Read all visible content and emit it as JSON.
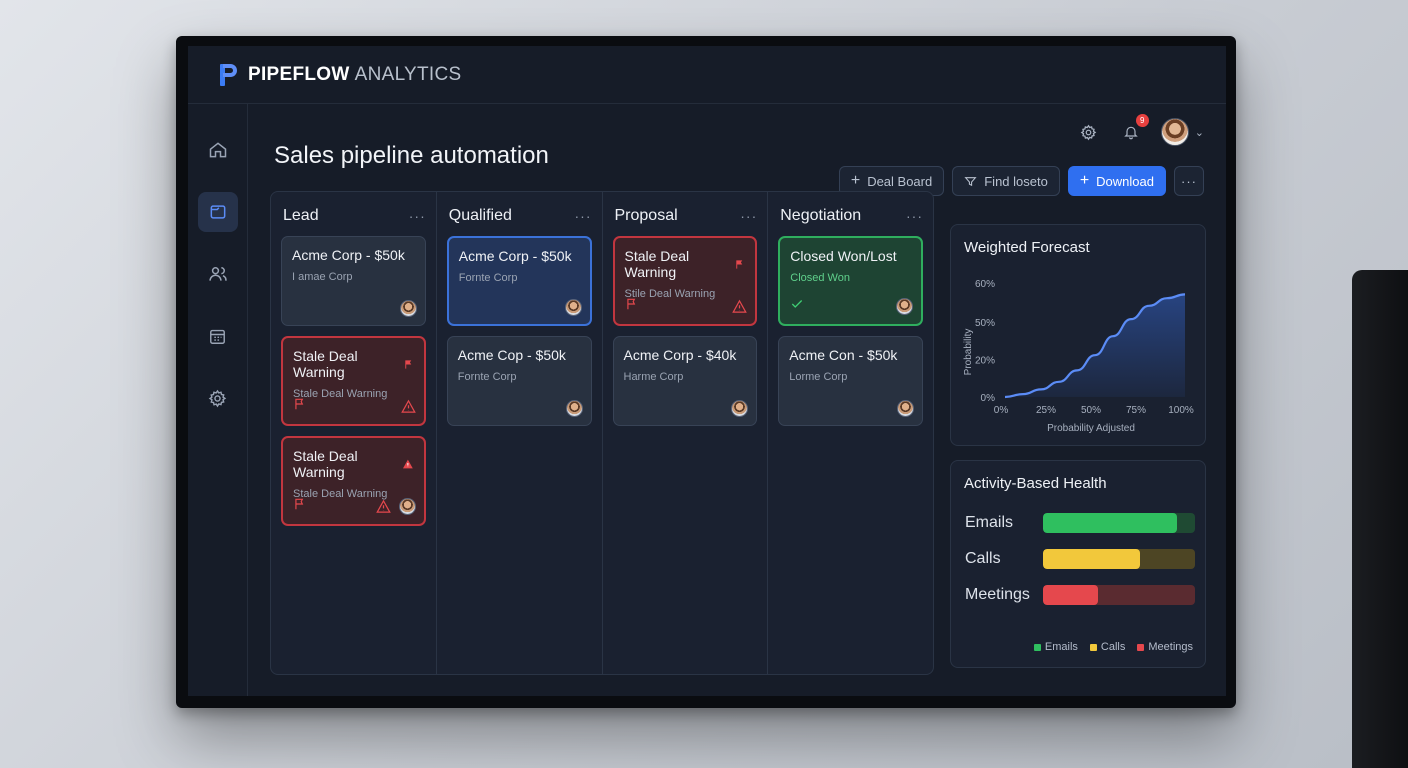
{
  "app": {
    "brand_strong": "PIPEFLOW",
    "brand_light": "ANALYTICS",
    "notification_count": "9"
  },
  "page": {
    "title": "Sales pipeline automation"
  },
  "toolbar": {
    "deal_board_label": "Deal Board",
    "find_label": "Find loseto",
    "download_label": "Download"
  },
  "sidebar": {
    "items": [
      {
        "name": "home-icon",
        "active": false
      },
      {
        "name": "folder-icon",
        "active": true
      },
      {
        "name": "users-icon",
        "active": false
      },
      {
        "name": "calendar-icon",
        "active": false
      },
      {
        "name": "gear-icon",
        "active": false
      }
    ]
  },
  "board": {
    "columns": [
      {
        "title": "Lead",
        "cards": [
          {
            "title": "Acme Corp - $50k",
            "sub": "I amae Corp",
            "style": "default"
          },
          {
            "title": "Stale Deal Warning",
            "sub": "Stale Deal Warning",
            "style": "red"
          },
          {
            "title": "Stale Deal Warning",
            "sub": "Stale Deal Warning",
            "style": "red"
          }
        ]
      },
      {
        "title": "Qualified",
        "cards": [
          {
            "title": "Acme Corp - $50k",
            "sub": "Fornte Corp",
            "style": "blue"
          },
          {
            "title": "Acme Cop - $50k",
            "sub": "Fornte Corp",
            "style": "default"
          }
        ]
      },
      {
        "title": "Proposal",
        "cards": [
          {
            "title": "Stale Deal Warning",
            "sub": "Stile Deal Warning",
            "style": "red"
          },
          {
            "title": "Acme Corp - $40k",
            "sub": "Harme Corp",
            "style": "default"
          }
        ]
      },
      {
        "title": "Negotiation",
        "cards": [
          {
            "title": "Closed Won/Lost",
            "sub": "Closed Won",
            "style": "green"
          },
          {
            "title": "Acme Con - $50k",
            "sub": "Lorme Corp",
            "style": "default"
          }
        ]
      }
    ]
  },
  "forecast": {
    "title": "Weighted Forecast"
  },
  "chart_data": {
    "type": "area",
    "title": "Weighted Forecast",
    "xlabel": "Probability Adjusted",
    "ylabel": "Probability",
    "x_ticks": [
      "0%",
      "25%",
      "50%",
      "75%",
      "100%"
    ],
    "y_ticks": [
      "60%",
      "50%",
      "20%",
      "0%"
    ],
    "series": [
      {
        "x": [
          0,
          10,
          20,
          30,
          40,
          50,
          60,
          70,
          80,
          90,
          100
        ],
        "y": [
          0,
          1.5,
          4,
          8,
          14,
          22,
          32,
          41,
          48,
          52,
          54
        ]
      }
    ],
    "colors": {
      "line": "#5b8cf6",
      "fill": "#2a4a8f"
    }
  },
  "health": {
    "title": "Activity-Based Health",
    "rows": [
      {
        "label": "Emails",
        "value": 0.88,
        "color": "#2fbf5f",
        "track": "#1f4a33"
      },
      {
        "label": "Calls",
        "value": 0.64,
        "color": "#f2c83b",
        "track": "#4d4524"
      },
      {
        "label": "Meetings",
        "value": 0.36,
        "color": "#e5484d",
        "track": "#5a2b30"
      }
    ],
    "legend": [
      "Emails",
      "Calls",
      "Meetings"
    ]
  }
}
